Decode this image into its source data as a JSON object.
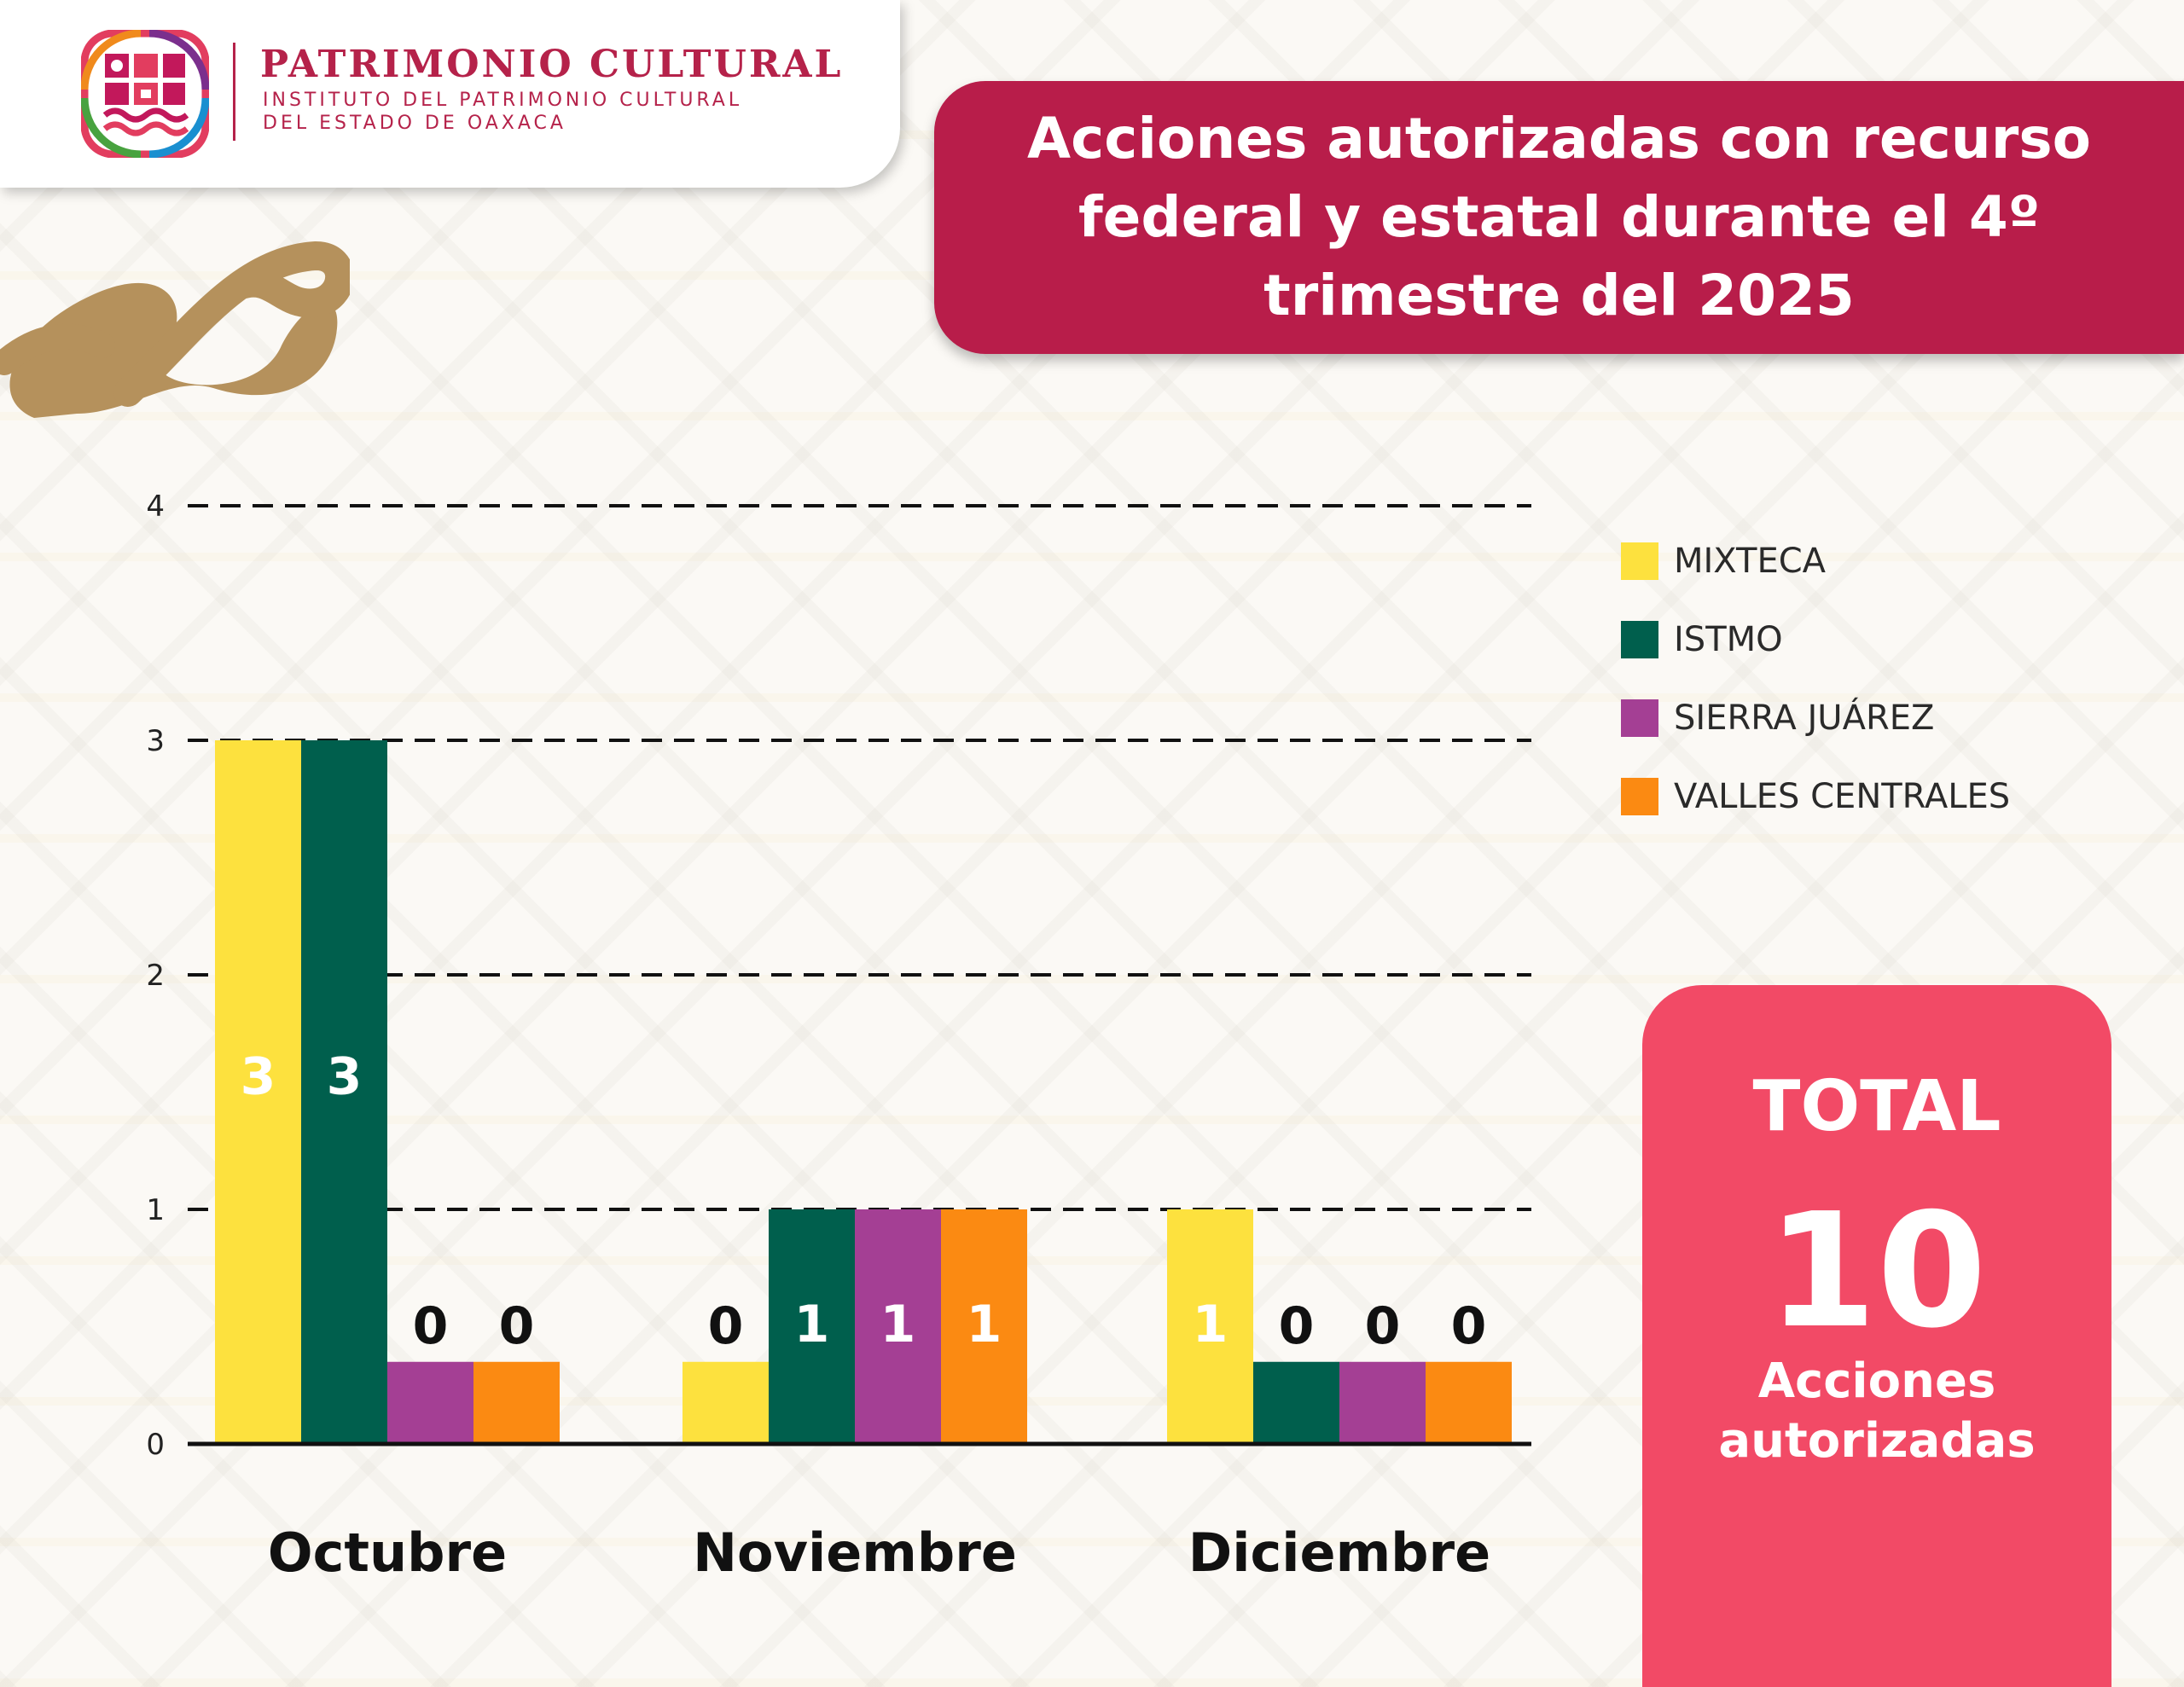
{
  "header": {
    "org_title": "PATRIMONIO CULTURAL",
    "org_subtitle_line1": "INSTITUTO DEL PATRIMONIO CULTURAL",
    "org_subtitle_line2": "DEL ESTADO DE OAXACA"
  },
  "banner": {
    "title": "Acciones autorizadas con recurso\nfederal y estatal durante el 4º\ntrimestre del 2025"
  },
  "total": {
    "label": "TOTAL",
    "value": "10",
    "caption": "Acciones\nautorizadas"
  },
  "colors": {
    "brand": "#b81d4a",
    "total_card": "#f24a66",
    "swirl": "#b5915c"
  },
  "chart_data": {
    "type": "bar",
    "categories": [
      "Octubre",
      "Noviembre",
      "Diciembre"
    ],
    "series": [
      {
        "name": "MIXTECA",
        "values": [
          3,
          0,
          1
        ],
        "color": "#fde13e"
      },
      {
        "name": "ISTMO",
        "values": [
          3,
          1,
          0
        ],
        "color": "#005f4d"
      },
      {
        "name": "SIERRA JUÁREZ",
        "values": [
          0,
          1,
          0
        ],
        "color": "#a43f94"
      },
      {
        "name": "VALLES CENTRALES",
        "values": [
          0,
          1,
          0
        ],
        "color": "#fb8a12"
      }
    ],
    "yticks": [
      0,
      1,
      2,
      3,
      4
    ],
    "ylim": [
      0,
      4
    ],
    "grid": "dashed horizontal",
    "legend": "right"
  }
}
